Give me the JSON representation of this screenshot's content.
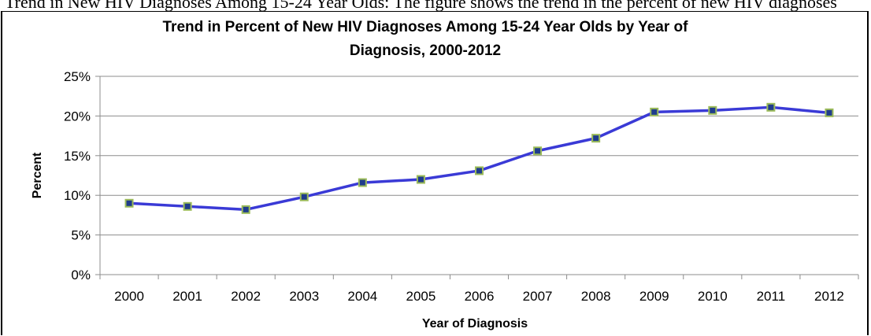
{
  "page": {
    "caption_fragment": "Trend in New HIV Diagnoses Among 15-24 Year Olds: The figure shows the trend in the percent of new HIV diagnoses"
  },
  "colors": {
    "line": "#3a3ad6",
    "marker_fill": "#1f3c8c",
    "marker_stroke": "#9bbb59",
    "grid": "#8c8c8c",
    "axis": "#8c8c8c"
  },
  "chart_data": {
    "type": "line",
    "title": "Trend in Percent of New HIV Diagnoses Among 15-24 Year Olds by Year of Diagnosis, 2000-2012",
    "title_lines": [
      "Trend in Percent of New HIV Diagnoses Among 15-24 Year Olds by Year of",
      "Diagnosis, 2000-2012"
    ],
    "xlabel": "Year of Diagnosis",
    "ylabel": "Percent",
    "categories": [
      "2000",
      "2001",
      "2002",
      "2003",
      "2004",
      "2005",
      "2006",
      "2007",
      "2008",
      "2009",
      "2010",
      "2011",
      "2012"
    ],
    "values": [
      9.0,
      8.6,
      8.2,
      9.8,
      11.6,
      12.0,
      13.1,
      15.6,
      17.2,
      20.5,
      20.7,
      21.1,
      20.4
    ],
    "y_ticks": [
      0,
      5,
      10,
      15,
      20,
      25
    ],
    "y_tick_labels": [
      "0%",
      "5%",
      "10%",
      "15%",
      "20%",
      "25%"
    ],
    "ylim": [
      0,
      25
    ],
    "grid": true,
    "legend": "none"
  }
}
